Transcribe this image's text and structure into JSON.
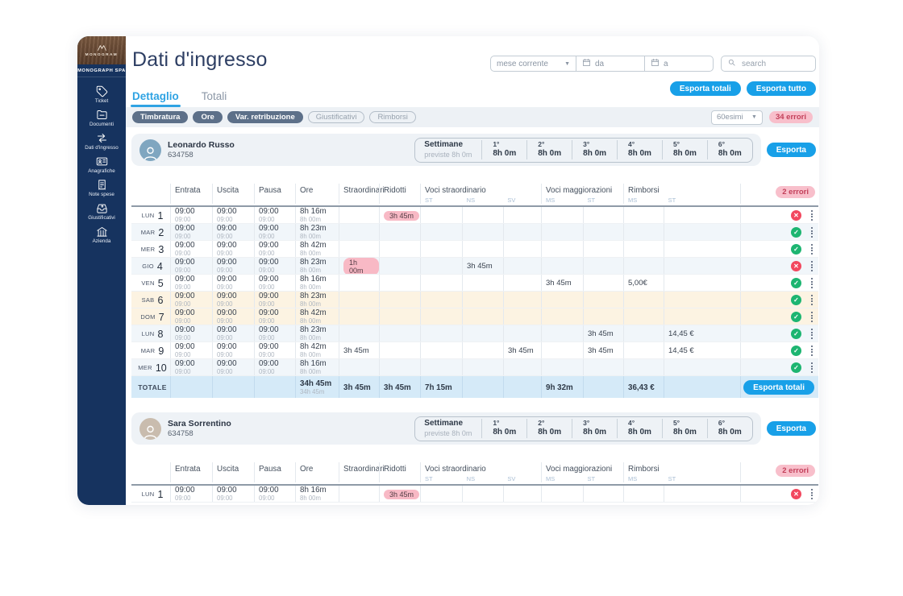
{
  "sidebar": {
    "logo_text": "MONOGRAM",
    "company": "MONOGRAPH SPA",
    "items": [
      {
        "label": "Ticket",
        "icon": "ticket-icon"
      },
      {
        "label": "Documenti",
        "icon": "documents-icon"
      },
      {
        "label": "Dati d'ingresso",
        "icon": "entry-data-icon",
        "active": true
      },
      {
        "label": "Anagrafiche",
        "icon": "registry-icon"
      },
      {
        "label": "Note spese",
        "icon": "expense-notes-icon"
      },
      {
        "label": "Giustificativi",
        "icon": "justifications-icon"
      },
      {
        "label": "Azienda",
        "icon": "company-icon"
      }
    ]
  },
  "header": {
    "title": "Dati d'ingresso",
    "period_select": "mese corrente",
    "date_from": "da",
    "date_to": "a",
    "search_placeholder": "search",
    "export_totals_label": "Esporta totali",
    "export_all_label": "Esporta tutto"
  },
  "tabs": [
    {
      "label": "Dettaglio",
      "active": true
    },
    {
      "label": "Totali",
      "active": false
    }
  ],
  "filter_bar": {
    "chips": [
      {
        "label": "Timbratura",
        "active": true
      },
      {
        "label": "Ore",
        "active": true
      },
      {
        "label": "Var. retribuzione",
        "active": true
      },
      {
        "label": "Giustificativi",
        "active": false
      },
      {
        "label": "Rimborsi",
        "active": false
      }
    ],
    "unit_select": "60esimi",
    "errors_badge": "34 errori"
  },
  "table_header": {
    "columns": [
      "Entrata",
      "Uscita",
      "Pausa",
      "Ore",
      "Straordinari",
      "Ridotti"
    ],
    "groups": [
      {
        "label": "Voci straordinario",
        "subs": [
          "ST",
          "NS",
          "SV"
        ]
      },
      {
        "label": "Voci maggiorazioni",
        "subs": [
          "MS",
          "ST"
        ]
      },
      {
        "label": "Rimborsi",
        "subs": [
          "MS",
          "ST"
        ]
      }
    ]
  },
  "weeks_panel": {
    "title": "Settimane",
    "subtitle": "previste  8h 0m"
  },
  "colors": {
    "accent_blue": "#18a0e8",
    "sidebar_navy": "#16335f",
    "ok_green": "#1db571",
    "error_red": "#f2485f",
    "badge_pink": "#f8b9c5",
    "weekend_cream": "#fcf3e2",
    "totals_blue": "#d5eaf8"
  },
  "employees": [
    {
      "name": "Leonardo Russo",
      "badge_id": "634758",
      "avatar_bg": "#7fa6c0",
      "export_label": "Esporta",
      "errors_badge": "2 errori",
      "weeks": [
        {
          "n": "1°",
          "v": "8h 0m"
        },
        {
          "n": "2°",
          "v": "8h 0m"
        },
        {
          "n": "3°",
          "v": "8h 0m"
        },
        {
          "n": "4°",
          "v": "8h 0m"
        },
        {
          "n": "5°",
          "v": "8h 0m"
        },
        {
          "n": "6°",
          "v": "8h 0m"
        }
      ],
      "rows": [
        {
          "day": "LUN",
          "num": "1",
          "entrata": [
            "09:00",
            "09:00"
          ],
          "uscita": [
            "09:00",
            "09:00"
          ],
          "pausa": [
            "09:00",
            "09:00"
          ],
          "ore": [
            "8h 16m",
            "8h 00m"
          ],
          "cells": {
            "ridotti": {
              "text": "3h 45m",
              "badge": true
            }
          },
          "status": "error",
          "weekend": false
        },
        {
          "day": "MAR",
          "num": "2",
          "entrata": [
            "09:00",
            "09:00"
          ],
          "uscita": [
            "09:00",
            "09:00"
          ],
          "pausa": [
            "09:00",
            "09:00"
          ],
          "ore": [
            "8h 23m",
            "8h 00m"
          ],
          "cells": {},
          "status": "ok",
          "weekend": false
        },
        {
          "day": "MER",
          "num": "3",
          "entrata": [
            "09:00",
            "09:00"
          ],
          "uscita": [
            "09:00",
            "09:00"
          ],
          "pausa": [
            "09:00",
            "09:00"
          ],
          "ore": [
            "8h 42m",
            "8h 00m"
          ],
          "cells": {},
          "status": "ok",
          "weekend": false
        },
        {
          "day": "GIO",
          "num": "4",
          "entrata": [
            "09:00",
            "09:00"
          ],
          "uscita": [
            "09:00",
            "09:00"
          ],
          "pausa": [
            "09:00",
            "09:00"
          ],
          "ore": [
            "8h 23m",
            "8h 00m"
          ],
          "cells": {
            "straordinari": {
              "text": "1h 00m",
              "badge": true
            },
            "vs_ns": {
              "text": "3h 45m",
              "badge": false
            }
          },
          "status": "error",
          "weekend": false
        },
        {
          "day": "VEN",
          "num": "5",
          "entrata": [
            "09:00",
            "09:00"
          ],
          "uscita": [
            "09:00",
            "09:00"
          ],
          "pausa": [
            "09:00",
            "09:00"
          ],
          "ore": [
            "8h 16m",
            "8h 00m"
          ],
          "cells": {
            "vm_ms": {
              "text": "3h 45m",
              "badge": false
            },
            "r_ms": {
              "text": "5,00€",
              "badge": false
            }
          },
          "status": "ok",
          "weekend": false
        },
        {
          "day": "SAB",
          "num": "6",
          "entrata": [
            "09:00",
            "09:00"
          ],
          "uscita": [
            "09:00",
            "09:00"
          ],
          "pausa": [
            "09:00",
            "09:00"
          ],
          "ore": [
            "8h 23m",
            "8h 00m"
          ],
          "cells": {},
          "status": "ok",
          "weekend": true
        },
        {
          "day": "DOM",
          "num": "7",
          "entrata": [
            "09:00",
            "09:00"
          ],
          "uscita": [
            "09:00",
            "09:00"
          ],
          "pausa": [
            "09:00",
            "09:00"
          ],
          "ore": [
            "8h 42m",
            "8h 00m"
          ],
          "cells": {},
          "status": "ok",
          "weekend": true
        },
        {
          "day": "LUN",
          "num": "8",
          "entrata": [
            "09:00",
            "09:00"
          ],
          "uscita": [
            "09:00",
            "09:00"
          ],
          "pausa": [
            "09:00",
            "09:00"
          ],
          "ore": [
            "8h 23m",
            "8h 00m"
          ],
          "cells": {
            "vm_st": {
              "text": "3h 45m",
              "badge": false
            },
            "r_st": {
              "text": "14,45 €",
              "badge": false
            }
          },
          "status": "ok",
          "weekend": false
        },
        {
          "day": "MAR",
          "num": "9",
          "entrata": [
            "09:00",
            "09:00"
          ],
          "uscita": [
            "09:00",
            "09:00"
          ],
          "pausa": [
            "09:00",
            "09:00"
          ],
          "ore": [
            "8h 42m",
            "8h 00m"
          ],
          "cells": {
            "straordinari": {
              "text": "3h 45m",
              "badge": false
            },
            "vs_sv": {
              "text": "3h 45m",
              "badge": false
            },
            "vm_st": {
              "text": "3h 45m",
              "badge": false
            },
            "r_st": {
              "text": "14,45 €",
              "badge": false
            }
          },
          "status": "ok",
          "weekend": false
        },
        {
          "day": "MER",
          "num": "10",
          "entrata": [
            "09:00",
            "09:00"
          ],
          "uscita": [
            "09:00",
            "09:00"
          ],
          "pausa": [
            "09:00",
            "09:00"
          ],
          "ore": [
            "8h 16m",
            "8h 00m"
          ],
          "cells": {},
          "status": "ok",
          "weekend": false
        }
      ],
      "totals": {
        "label": "TOTALE",
        "ore": [
          "34h 45m",
          "34h 45m"
        ],
        "cells": {
          "straordinari": "3h 45m",
          "ridotti": "3h 45m",
          "vs_st": "7h 15m",
          "vm_ms": "9h 32m",
          "r_ms": "36,43 €"
        },
        "export_label": "Esporta totali"
      }
    },
    {
      "name": "Sara Sorrentino",
      "badge_id": "634758",
      "avatar_bg": "#c9bcae",
      "export_label": "Esporta",
      "errors_badge": "2 errori",
      "weeks": [
        {
          "n": "1°",
          "v": "8h 0m"
        },
        {
          "n": "2°",
          "v": "8h 0m"
        },
        {
          "n": "3°",
          "v": "8h 0m"
        },
        {
          "n": "4°",
          "v": "8h 0m"
        },
        {
          "n": "5°",
          "v": "8h 0m"
        },
        {
          "n": "6°",
          "v": "8h 0m"
        }
      ],
      "rows": [
        {
          "day": "LUN",
          "num": "1",
          "entrata": [
            "09:00",
            "09:00"
          ],
          "uscita": [
            "09:00",
            "09:00"
          ],
          "pausa": [
            "09:00",
            "09:00"
          ],
          "ore": [
            "8h 16m",
            "8h 00m"
          ],
          "cells": {
            "ridotti": {
              "text": "3h 45m",
              "badge": true
            }
          },
          "status": "error",
          "weekend": false
        }
      ],
      "totals": null
    }
  ]
}
